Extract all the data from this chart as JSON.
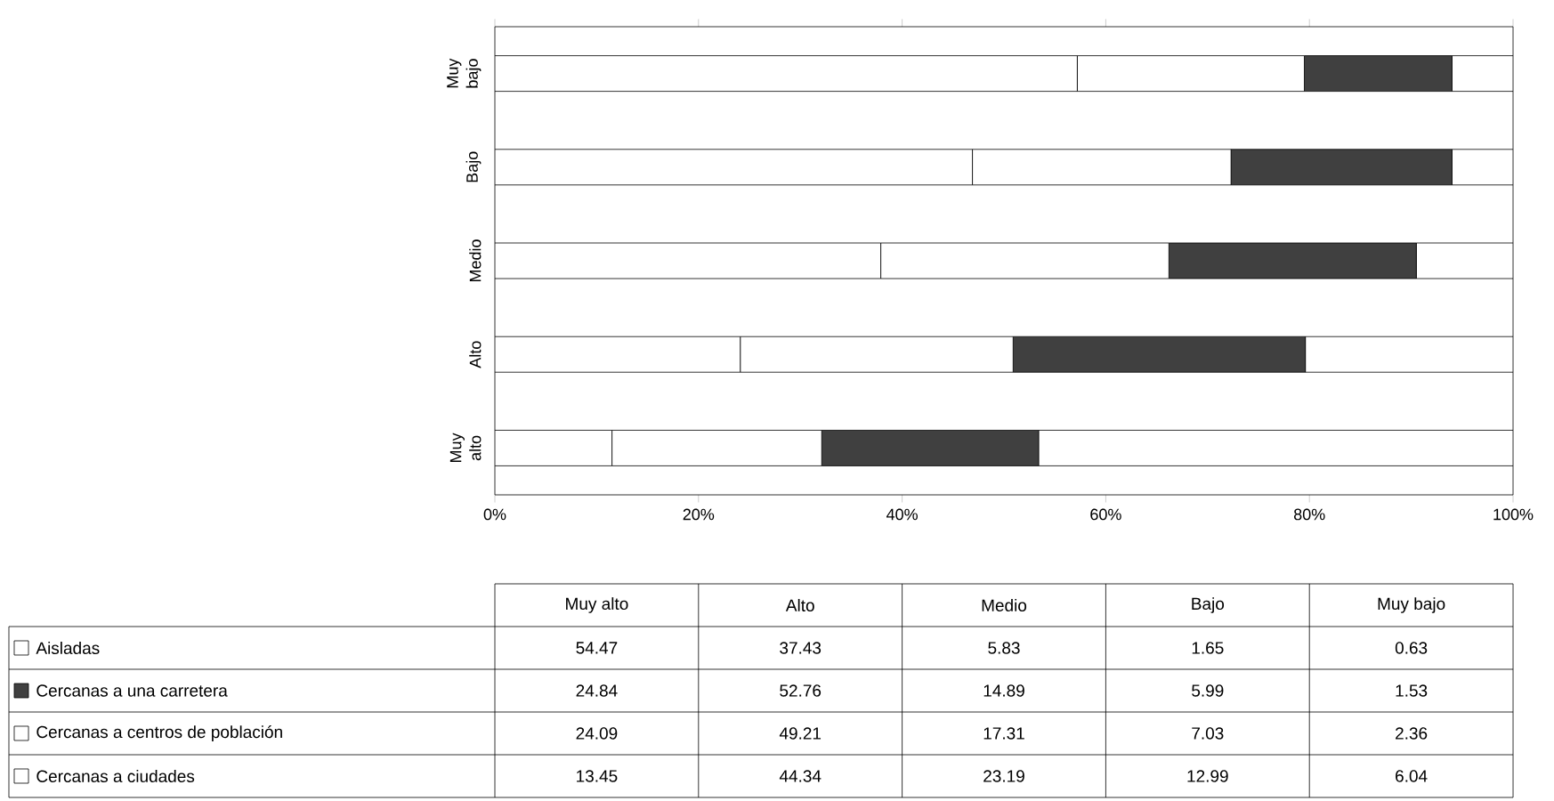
{
  "chart_data": [
    {
      "type": "bar",
      "orientation": "horizontal",
      "stacked": true,
      "categories": [
        "Muy bajo",
        "Bajo",
        "Medio",
        "Alto",
        "Muy alto"
      ],
      "xlim": [
        0,
        100
      ],
      "xticks": [
        {
          "value": 0,
          "label": "0%"
        },
        {
          "value": 20,
          "label": "20%"
        },
        {
          "value": 40,
          "label": "40%"
        },
        {
          "value": 60,
          "label": "60%"
        },
        {
          "value": 80,
          "label": "80%"
        },
        {
          "value": 100,
          "label": "100%"
        }
      ],
      "series": [
        {
          "color": "#ffffff",
          "values": [
            57.2,
            46.9,
            37.9,
            24.1,
            11.5
          ]
        },
        {
          "color": "#ffffff",
          "values": [
            22.3,
            25.4,
            28.3,
            26.8,
            20.6
          ]
        },
        {
          "color": "#404040",
          "values": [
            14.5,
            21.7,
            24.3,
            28.7,
            21.3
          ]
        },
        {
          "color": "#ffffff",
          "values": [
            6.0,
            6.0,
            9.5,
            20.4,
            46.6
          ]
        }
      ]
    },
    {
      "type": "other",
      "data_labels": true,
      "categories": [
        "Muy alto",
        "Alto",
        "Medio",
        "Bajo",
        "Muy bajo"
      ],
      "series": [
        {
          "name": "Aisladas",
          "color": "#ffffff",
          "values": [
            54.47,
            37.43,
            5.83,
            1.65,
            0.63
          ]
        },
        {
          "name": "Cercanas a una carretera",
          "color": "#404040",
          "values": [
            24.84,
            52.76,
            14.89,
            5.99,
            1.53
          ]
        },
        {
          "name": "Cercanas a centros de población",
          "color": "#ffffff",
          "values": [
            24.09,
            49.21,
            17.31,
            7.03,
            2.36
          ]
        },
        {
          "name": "Cercanas a ciudades",
          "color": "#ffffff",
          "values": [
            13.45,
            44.34,
            23.19,
            12.99,
            6.04
          ]
        }
      ]
    }
  ]
}
